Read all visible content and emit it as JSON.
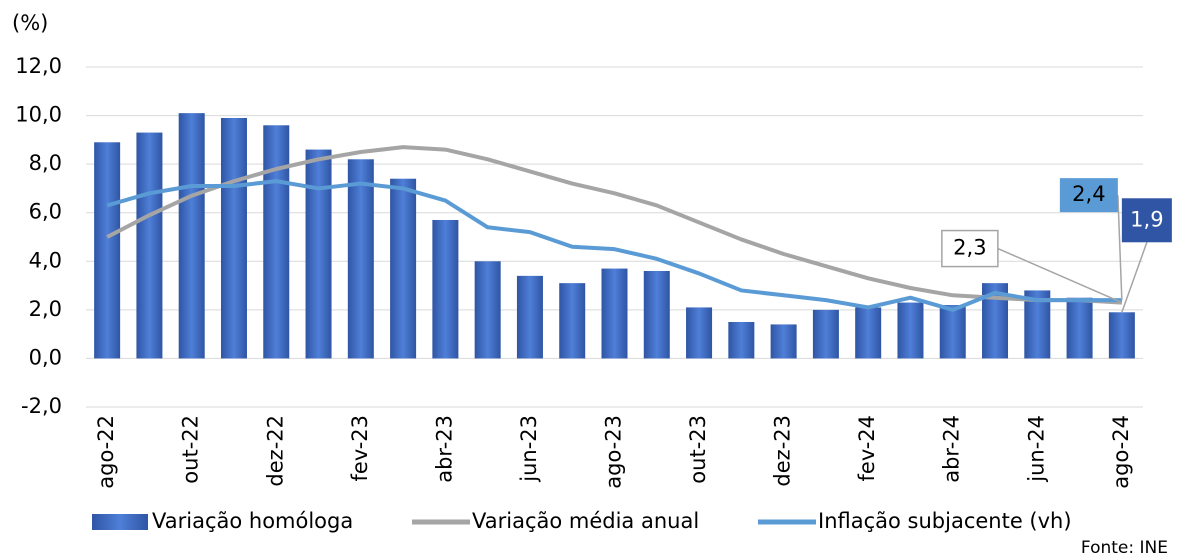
{
  "chart_data": {
    "type": "bar",
    "y_label": "(%)",
    "source": "Fonte: INE",
    "categories": [
      "ago-22",
      null,
      "out-22",
      null,
      "dez-22",
      null,
      "fev-23",
      null,
      "abr-23",
      null,
      "jun-23",
      null,
      "ago-23",
      null,
      "out-23",
      null,
      "dez-23",
      null,
      "fev-24",
      null,
      "abr-24",
      null,
      "jun-24",
      null,
      "ago-24"
    ],
    "series": [
      {
        "name": "Variação homóloga",
        "type": "bar",
        "color": "#4472c4",
        "values": [
          8.9,
          9.3,
          10.1,
          9.9,
          9.6,
          8.6,
          8.2,
          7.4,
          5.7,
          4.0,
          3.4,
          3.1,
          3.7,
          3.6,
          2.1,
          1.5,
          1.4,
          2.0,
          2.1,
          2.3,
          2.2,
          3.1,
          2.8,
          2.5,
          1.9
        ],
        "value_labels": [
          null,
          null,
          null,
          null,
          null,
          null,
          null,
          null,
          null,
          null,
          null,
          null,
          null,
          null,
          null,
          null,
          null,
          null,
          null,
          null,
          null,
          null,
          null,
          null,
          "1,9"
        ]
      },
      {
        "name": "Variação média anual",
        "type": "line",
        "color": "#a5a5a5",
        "values": [
          5.0,
          5.9,
          6.7,
          7.3,
          7.8,
          8.2,
          8.5,
          8.7,
          8.6,
          8.2,
          7.7,
          7.2,
          6.8,
          6.3,
          5.6,
          4.9,
          4.3,
          3.8,
          3.3,
          2.9,
          2.6,
          2.5,
          2.4,
          2.4,
          2.3
        ],
        "value_labels": [
          null,
          null,
          null,
          null,
          null,
          null,
          null,
          null,
          null,
          null,
          null,
          null,
          null,
          null,
          null,
          null,
          null,
          null,
          null,
          null,
          null,
          null,
          null,
          null,
          "2,3"
        ]
      },
      {
        "name": "Inflação subjacente  (vh)",
        "type": "line",
        "color": "#5b9bd5",
        "values": [
          6.3,
          6.8,
          7.1,
          7.1,
          7.3,
          7.0,
          7.2,
          7.0,
          6.5,
          5.4,
          5.2,
          4.6,
          4.5,
          4.1,
          3.5,
          2.8,
          2.6,
          2.4,
          2.1,
          2.5,
          2.0,
          2.7,
          2.4,
          2.4,
          2.4
        ],
        "value_labels": [
          null,
          null,
          null,
          null,
          null,
          null,
          null,
          null,
          null,
          null,
          null,
          null,
          null,
          null,
          null,
          null,
          null,
          null,
          null,
          null,
          null,
          null,
          null,
          null,
          "2,4"
        ]
      }
    ],
    "ylim": [
      -2,
      12
    ],
    "yticks": [
      {
        "value": -2,
        "label": "-2,0"
      },
      {
        "value": 0,
        "label": "0,0"
      },
      {
        "value": 2,
        "label": "2,0"
      },
      {
        "value": 4,
        "label": "4,0"
      },
      {
        "value": 6,
        "label": "6,0"
      },
      {
        "value": 8,
        "label": "8,0"
      },
      {
        "value": 10,
        "label": "10,0"
      },
      {
        "value": 12,
        "label": "12,0"
      }
    ],
    "grid": true
  }
}
